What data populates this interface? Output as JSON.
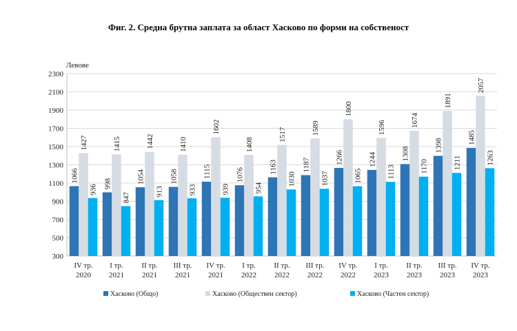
{
  "chart_data": {
    "type": "bar",
    "title": "Фиг. 2. Средна брутна заплата за област Хасково по форми на собственост",
    "ylabel": "Левове",
    "xlabel": "",
    "ylim": [
      300,
      2300
    ],
    "yticks": [
      300,
      500,
      700,
      900,
      1100,
      1300,
      1500,
      1700,
      1900,
      2100,
      2300
    ],
    "grid": true,
    "legend_position": "bottom",
    "categories": [
      [
        "IV тр.",
        "2020"
      ],
      [
        "I тр.",
        "2021"
      ],
      [
        "II тр.",
        "2021"
      ],
      [
        "III тр.",
        "2021"
      ],
      [
        "IV тр.",
        "2021"
      ],
      [
        "I тр.",
        "2022"
      ],
      [
        "II тр.",
        "2022"
      ],
      [
        "III тр.",
        "2022"
      ],
      [
        "IV тр.",
        "2022"
      ],
      [
        "I тр.",
        "2023"
      ],
      [
        "II тр.",
        "2023"
      ],
      [
        "III тр.",
        "2023"
      ],
      [
        "IV тр.",
        "2023"
      ]
    ],
    "series": [
      {
        "name": "Хасково (Общо)",
        "color": "#2e75b6",
        "values": [
          1066,
          998,
          1054,
          1058,
          1115,
          1076,
          1163,
          1187,
          1266,
          1244,
          1308,
          1398,
          1485
        ]
      },
      {
        "name": "Хасково (Обществен сектор)",
        "color": "#d6dce4",
        "values": [
          1427,
          1415,
          1442,
          1410,
          1602,
          1408,
          1517,
          1589,
          1800,
          1596,
          1674,
          1891,
          2057
        ]
      },
      {
        "name": "Хасково (Частен сектор)",
        "color": "#00b0f0",
        "values": [
          936,
          847,
          913,
          933,
          939,
          954,
          1030,
          1037,
          1065,
          1113,
          1170,
          1211,
          1263
        ]
      }
    ]
  }
}
